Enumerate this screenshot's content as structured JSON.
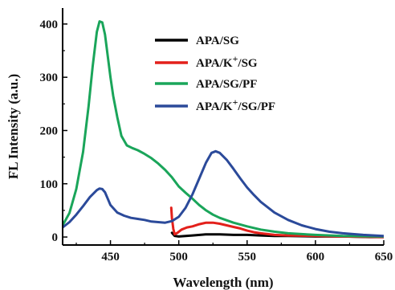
{
  "chart_data": {
    "type": "line",
    "title": "",
    "xlabel": "Wavelength (nm)",
    "ylabel": "FL Intensity (a.u.)",
    "xlim": [
      415,
      650
    ],
    "ylim": [
      -15,
      430
    ],
    "xticks": [
      450,
      500,
      550,
      600,
      650
    ],
    "yticks": [
      0,
      100,
      200,
      300,
      400
    ],
    "grid": false,
    "legend_position": "top-right",
    "series": [
      {
        "name": "APA/SG",
        "legend": {
          "base": "APA/SG",
          "sup": "",
          "tail": ""
        },
        "color": "#000000",
        "points": [
          [
            495,
            8
          ],
          [
            497,
            2
          ],
          [
            500,
            1
          ],
          [
            505,
            2
          ],
          [
            510,
            3
          ],
          [
            520,
            5
          ],
          [
            530,
            5
          ],
          [
            540,
            4
          ],
          [
            550,
            4
          ],
          [
            560,
            3
          ],
          [
            570,
            2
          ],
          [
            580,
            2
          ],
          [
            600,
            1
          ],
          [
            620,
            1
          ],
          [
            640,
            0
          ],
          [
            650,
            0
          ]
        ]
      },
      {
        "name": "APA/K+/SG",
        "legend": {
          "base": "APA/K",
          "sup": "+",
          "tail": "/SG"
        },
        "color": "#e3201b",
        "points": [
          [
            494.5,
            55
          ],
          [
            495,
            35
          ],
          [
            496,
            15
          ],
          [
            497,
            5
          ],
          [
            499,
            8
          ],
          [
            502,
            14
          ],
          [
            506,
            18
          ],
          [
            510,
            20
          ],
          [
            515,
            24
          ],
          [
            520,
            27
          ],
          [
            525,
            27
          ],
          [
            530,
            25
          ],
          [
            535,
            22
          ],
          [
            540,
            19
          ],
          [
            545,
            16
          ],
          [
            550,
            12
          ],
          [
            555,
            9
          ],
          [
            560,
            7
          ],
          [
            570,
            4
          ],
          [
            580,
            3
          ],
          [
            600,
            2
          ],
          [
            620,
            1
          ],
          [
            650,
            0
          ]
        ]
      },
      {
        "name": "APA/SG/PF",
        "legend": {
          "base": "APA/SG/PF",
          "sup": "",
          "tail": ""
        },
        "color": "#1aa55a",
        "points": [
          [
            415,
            22
          ],
          [
            420,
            45
          ],
          [
            425,
            90
          ],
          [
            430,
            160
          ],
          [
            434,
            245
          ],
          [
            437,
            320
          ],
          [
            440,
            385
          ],
          [
            442,
            405
          ],
          [
            444,
            403
          ],
          [
            446,
            380
          ],
          [
            448,
            340
          ],
          [
            450,
            300
          ],
          [
            452,
            265
          ],
          [
            455,
            225
          ],
          [
            458,
            190
          ],
          [
            462,
            172
          ],
          [
            466,
            167
          ],
          [
            470,
            163
          ],
          [
            475,
            156
          ],
          [
            480,
            148
          ],
          [
            485,
            138
          ],
          [
            490,
            126
          ],
          [
            495,
            112
          ],
          [
            500,
            95
          ],
          [
            505,
            83
          ],
          [
            510,
            72
          ],
          [
            515,
            60
          ],
          [
            520,
            50
          ],
          [
            525,
            42
          ],
          [
            530,
            36
          ],
          [
            540,
            27
          ],
          [
            550,
            20
          ],
          [
            560,
            14
          ],
          [
            570,
            10
          ],
          [
            580,
            7
          ],
          [
            600,
            4
          ],
          [
            620,
            2
          ],
          [
            650,
            1
          ]
        ]
      },
      {
        "name": "APA/K+/SG/PF",
        "legend": {
          "base": "APA/K",
          "sup": "+",
          "tail": "/SG/PF"
        },
        "color": "#2b4a9a",
        "points": [
          [
            415,
            18
          ],
          [
            420,
            28
          ],
          [
            425,
            42
          ],
          [
            430,
            58
          ],
          [
            435,
            75
          ],
          [
            440,
            88
          ],
          [
            442,
            91
          ],
          [
            444,
            90
          ],
          [
            446,
            84
          ],
          [
            448,
            72
          ],
          [
            450,
            60
          ],
          [
            455,
            46
          ],
          [
            460,
            40
          ],
          [
            465,
            36
          ],
          [
            470,
            34
          ],
          [
            475,
            32
          ],
          [
            480,
            29
          ],
          [
            485,
            28
          ],
          [
            490,
            27
          ],
          [
            495,
            30
          ],
          [
            500,
            38
          ],
          [
            505,
            55
          ],
          [
            510,
            80
          ],
          [
            515,
            110
          ],
          [
            520,
            140
          ],
          [
            524,
            158
          ],
          [
            527,
            161
          ],
          [
            530,
            158
          ],
          [
            535,
            145
          ],
          [
            540,
            128
          ],
          [
            545,
            110
          ],
          [
            550,
            93
          ],
          [
            555,
            79
          ],
          [
            560,
            66
          ],
          [
            570,
            46
          ],
          [
            580,
            32
          ],
          [
            590,
            22
          ],
          [
            600,
            15
          ],
          [
            610,
            10
          ],
          [
            620,
            7
          ],
          [
            635,
            4
          ],
          [
            650,
            2
          ]
        ]
      }
    ]
  }
}
